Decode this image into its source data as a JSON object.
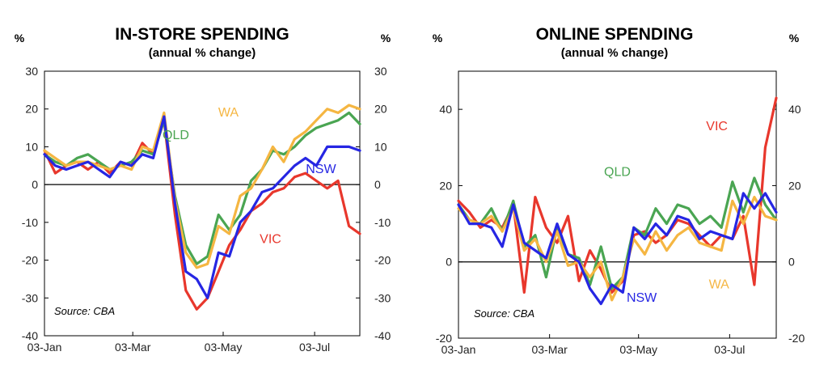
{
  "chart_data": [
    {
      "type": "line",
      "title": "IN-STORE SPENDING",
      "subtitle": "(annual % change)",
      "unit_left": "%",
      "unit_right": "%",
      "ylim": [
        -40,
        30
      ],
      "yticks": [
        30,
        20,
        10,
        0,
        -10,
        -20,
        -30,
        -40
      ],
      "xlim": [
        0,
        30
      ],
      "xticks": [
        {
          "label": "03-Jan",
          "x": 0
        },
        {
          "label": "03-Mar",
          "x": 8.4
        },
        {
          "label": "03-May",
          "x": 17
        },
        {
          "label": "03-Jul",
          "x": 25.7
        }
      ],
      "source": "Source: CBA",
      "series": [
        {
          "name": "VIC",
          "color": "#e8372c",
          "label_at": [
            21.5,
            -15.5
          ],
          "values": [
            9,
            3,
            5,
            6,
            4,
            6,
            3,
            6,
            5,
            11,
            8,
            17,
            -8,
            -28,
            -33,
            -30,
            -23,
            -16,
            -12,
            -7,
            -5,
            -2,
            -1,
            2,
            3,
            1,
            -1,
            1,
            -11,
            -13
          ]
        },
        {
          "name": "QLD",
          "color": "#4aa552",
          "label_at": [
            12.5,
            12
          ],
          "values": [
            8,
            6,
            5,
            7,
            8,
            6,
            4,
            5,
            6,
            9,
            8,
            17,
            -3,
            -16,
            -21,
            -19,
            -8,
            -12,
            -8,
            1,
            4,
            9,
            8,
            10,
            13,
            15,
            16,
            17,
            19,
            16
          ]
        },
        {
          "name": "WA",
          "color": "#f5b642",
          "label_at": [
            17.5,
            18
          ],
          "values": [
            9,
            7,
            5,
            6,
            6,
            5,
            4,
            5,
            4,
            10,
            9,
            19,
            -4,
            -18,
            -22,
            -21,
            -11,
            -13,
            -3,
            -1,
            4,
            10,
            6,
            12,
            14,
            17,
            20,
            19,
            21,
            20
          ]
        },
        {
          "name": "NSW",
          "color": "#2626e3",
          "label_at": [
            26.3,
            3
          ],
          "values": [
            8,
            5,
            4,
            5,
            6,
            4,
            2,
            6,
            5,
            8,
            7,
            18,
            -5,
            -23,
            -25,
            -30,
            -18,
            -19,
            -10,
            -7,
            -2,
            -1,
            2,
            5,
            7,
            5,
            10,
            10,
            10,
            9
          ]
        }
      ]
    },
    {
      "type": "line",
      "title": "ONLINE SPENDING",
      "subtitle": "(annual % change)",
      "unit_left": "%",
      "unit_right": "%",
      "ylim": [
        -20,
        50
      ],
      "yticks": [
        40,
        20,
        0,
        -20
      ],
      "xlim": [
        0,
        30
      ],
      "xticks": [
        {
          "label": "03-Jan",
          "x": 0
        },
        {
          "label": "03-Mar",
          "x": 8.6
        },
        {
          "label": "03-May",
          "x": 17
        },
        {
          "label": "03-Jul",
          "x": 25.6
        }
      ],
      "source": "Source: CBA",
      "series": [
        {
          "name": "VIC",
          "color": "#e8372c",
          "label_at": [
            24.4,
            34.5
          ],
          "values": [
            16,
            13,
            9,
            11,
            9,
            15,
            -8,
            17,
            9,
            5,
            12,
            -5,
            3,
            -2,
            -8,
            -5,
            7,
            8,
            5,
            7,
            11,
            10,
            7,
            4,
            7,
            6,
            12,
            -6,
            30,
            43
          ]
        },
        {
          "name": "QLD",
          "color": "#4aa552",
          "label_at": [
            15,
            22.5
          ],
          "values": [
            15,
            11,
            10,
            14,
            8,
            16,
            4,
            7,
            -4,
            9,
            2,
            1,
            -6,
            4,
            -7,
            -4,
            9,
            7,
            14,
            10,
            15,
            14,
            10,
            12,
            9,
            21,
            13,
            22,
            15,
            11
          ]
        },
        {
          "name": "WA",
          "color": "#f5b642",
          "label_at": [
            24.6,
            -7
          ],
          "values": [
            14,
            11,
            10,
            12,
            8,
            14,
            3,
            6,
            0,
            8,
            -1,
            0,
            -4,
            0,
            -10,
            -4,
            6,
            2,
            8,
            3,
            7,
            9,
            5,
            4,
            3,
            16,
            10,
            17,
            12,
            11
          ]
        },
        {
          "name": "NSW",
          "color": "#2626e3",
          "label_at": [
            17.3,
            -10.5
          ],
          "values": [
            15,
            10,
            10,
            9,
            4,
            15,
            5,
            3,
            1,
            10,
            2,
            0,
            -7,
            -11,
            -6,
            -8,
            9,
            6,
            10,
            7,
            12,
            11,
            6,
            8,
            7,
            6,
            18,
            14,
            18,
            13
          ]
        }
      ]
    }
  ]
}
